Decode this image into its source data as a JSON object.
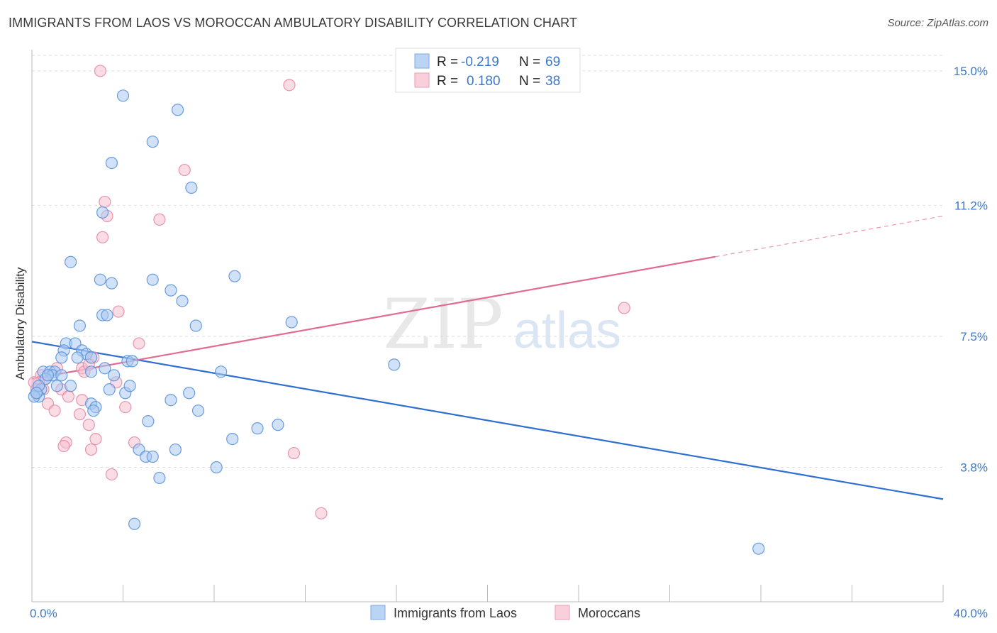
{
  "header": {
    "title": "IMMIGRANTS FROM LAOS VS MOROCCAN AMBULATORY DISABILITY CORRELATION CHART",
    "source": "Source: ZipAtlas.com"
  },
  "watermark": {
    "zip": "ZIP",
    "atlas": "atlas"
  },
  "colors": {
    "laos_fill": "#a9c9f2",
    "laos_stroke": "#5b93d9",
    "laos_line": "#2f6fd1",
    "moroccan_fill": "#f6bfd0",
    "moroccan_stroke": "#e58aa8",
    "moroccan_line": "#e26b93",
    "tick_text": "#3b78c9",
    "grid": "#dddddd"
  },
  "stats_legend": [
    {
      "r_label": "R =",
      "r_value": "-0.219",
      "n_label": "N =",
      "n_value": "69"
    },
    {
      "r_label": "R =",
      "r_value": "0.180",
      "n_label": "N =",
      "n_value": "38"
    }
  ],
  "chart_data": {
    "type": "scatter",
    "title": "IMMIGRANTS FROM LAOS VS MOROCCAN AMBULATORY DISABILITY CORRELATION CHART",
    "xlabel": "",
    "ylabel": "Ambulatory Disability",
    "xlim": [
      0,
      40
    ],
    "ylim": [
      0,
      15.6
    ],
    "x_tick_labels": [
      "0.0%",
      "40.0%"
    ],
    "y_ticks": [
      3.8,
      7.5,
      11.2,
      15.0
    ],
    "y_tick_labels": [
      "3.8%",
      "7.5%",
      "11.2%",
      "15.0%"
    ],
    "grid": "horizontal dashed",
    "legend_position": "bottom",
    "series": [
      {
        "name": "Immigrants from Laos",
        "trend": {
          "x0": 0,
          "y0": 7.35,
          "x1": 40,
          "y1": 2.9,
          "dashed_from_x": null
        },
        "points": [
          [
            4.0,
            14.3
          ],
          [
            6.4,
            13.9
          ],
          [
            5.3,
            13.0
          ],
          [
            3.5,
            12.4
          ],
          [
            7.0,
            11.7
          ],
          [
            3.1,
            11.0
          ],
          [
            1.7,
            9.6
          ],
          [
            3.0,
            9.1
          ],
          [
            3.5,
            9.0
          ],
          [
            5.3,
            9.1
          ],
          [
            8.9,
            9.2
          ],
          [
            6.1,
            8.8
          ],
          [
            6.6,
            8.5
          ],
          [
            3.1,
            8.1
          ],
          [
            3.3,
            8.1
          ],
          [
            2.1,
            7.8
          ],
          [
            7.2,
            7.8
          ],
          [
            11.4,
            7.9
          ],
          [
            1.5,
            7.3
          ],
          [
            1.9,
            7.3
          ],
          [
            2.2,
            7.1
          ],
          [
            1.4,
            7.1
          ],
          [
            2.4,
            7.0
          ],
          [
            1.3,
            6.9
          ],
          [
            2.6,
            6.9
          ],
          [
            2.0,
            6.9
          ],
          [
            4.2,
            6.8
          ],
          [
            4.4,
            6.8
          ],
          [
            3.2,
            6.6
          ],
          [
            2.6,
            6.5
          ],
          [
            3.6,
            6.4
          ],
          [
            0.5,
            6.5
          ],
          [
            0.8,
            6.5
          ],
          [
            1.0,
            6.5
          ],
          [
            0.9,
            6.4
          ],
          [
            0.6,
            6.3
          ],
          [
            0.7,
            6.4
          ],
          [
            1.3,
            6.4
          ],
          [
            1.7,
            6.1
          ],
          [
            1.1,
            6.1
          ],
          [
            0.4,
            6.0
          ],
          [
            0.3,
            5.8
          ],
          [
            0.2,
            5.9
          ],
          [
            0.1,
            5.8
          ],
          [
            0.3,
            6.1
          ],
          [
            3.4,
            6.0
          ],
          [
            4.1,
            5.9
          ],
          [
            4.3,
            6.1
          ],
          [
            6.9,
            5.9
          ],
          [
            6.1,
            5.7
          ],
          [
            15.9,
            6.7
          ],
          [
            8.3,
            6.5
          ],
          [
            2.6,
            5.6
          ],
          [
            2.8,
            5.5
          ],
          [
            2.7,
            5.4
          ],
          [
            5.1,
            5.1
          ],
          [
            7.3,
            5.4
          ],
          [
            10.8,
            5.0
          ],
          [
            9.9,
            4.9
          ],
          [
            8.8,
            4.6
          ],
          [
            4.7,
            4.3
          ],
          [
            5.0,
            4.1
          ],
          [
            5.3,
            4.1
          ],
          [
            6.3,
            4.3
          ],
          [
            8.1,
            3.8
          ],
          [
            5.6,
            3.5
          ],
          [
            4.5,
            2.2
          ],
          [
            31.9,
            1.5
          ],
          [
            0.2,
            5.9
          ]
        ]
      },
      {
        "name": "Moroccans",
        "trend": {
          "x0": 0,
          "y0": 6.3,
          "x1": 40,
          "y1": 10.9,
          "dashed_from_x": 30.0
        },
        "points": [
          [
            3.0,
            15.0
          ],
          [
            11.3,
            14.6
          ],
          [
            6.7,
            12.2
          ],
          [
            3.2,
            11.3
          ],
          [
            3.3,
            10.9
          ],
          [
            5.6,
            10.8
          ],
          [
            3.1,
            10.3
          ],
          [
            3.8,
            8.2
          ],
          [
            26.0,
            8.3
          ],
          [
            4.7,
            7.3
          ],
          [
            2.7,
            6.9
          ],
          [
            1.1,
            6.6
          ],
          [
            2.2,
            6.6
          ],
          [
            2.3,
            6.5
          ],
          [
            2.5,
            6.7
          ],
          [
            0.4,
            6.4
          ],
          [
            0.6,
            6.3
          ],
          [
            0.3,
            6.2
          ],
          [
            0.1,
            6.2
          ],
          [
            0.2,
            6.0
          ],
          [
            0.5,
            6.0
          ],
          [
            1.3,
            6.0
          ],
          [
            3.7,
            6.2
          ],
          [
            1.6,
            5.8
          ],
          [
            2.2,
            5.7
          ],
          [
            0.7,
            5.6
          ],
          [
            1.0,
            5.4
          ],
          [
            4.1,
            5.5
          ],
          [
            2.1,
            5.3
          ],
          [
            2.5,
            5.0
          ],
          [
            1.5,
            4.5
          ],
          [
            2.8,
            4.6
          ],
          [
            4.5,
            4.5
          ],
          [
            1.4,
            4.4
          ],
          [
            2.6,
            4.3
          ],
          [
            11.5,
            4.2
          ],
          [
            3.5,
            3.6
          ],
          [
            12.7,
            2.5
          ]
        ]
      }
    ]
  }
}
